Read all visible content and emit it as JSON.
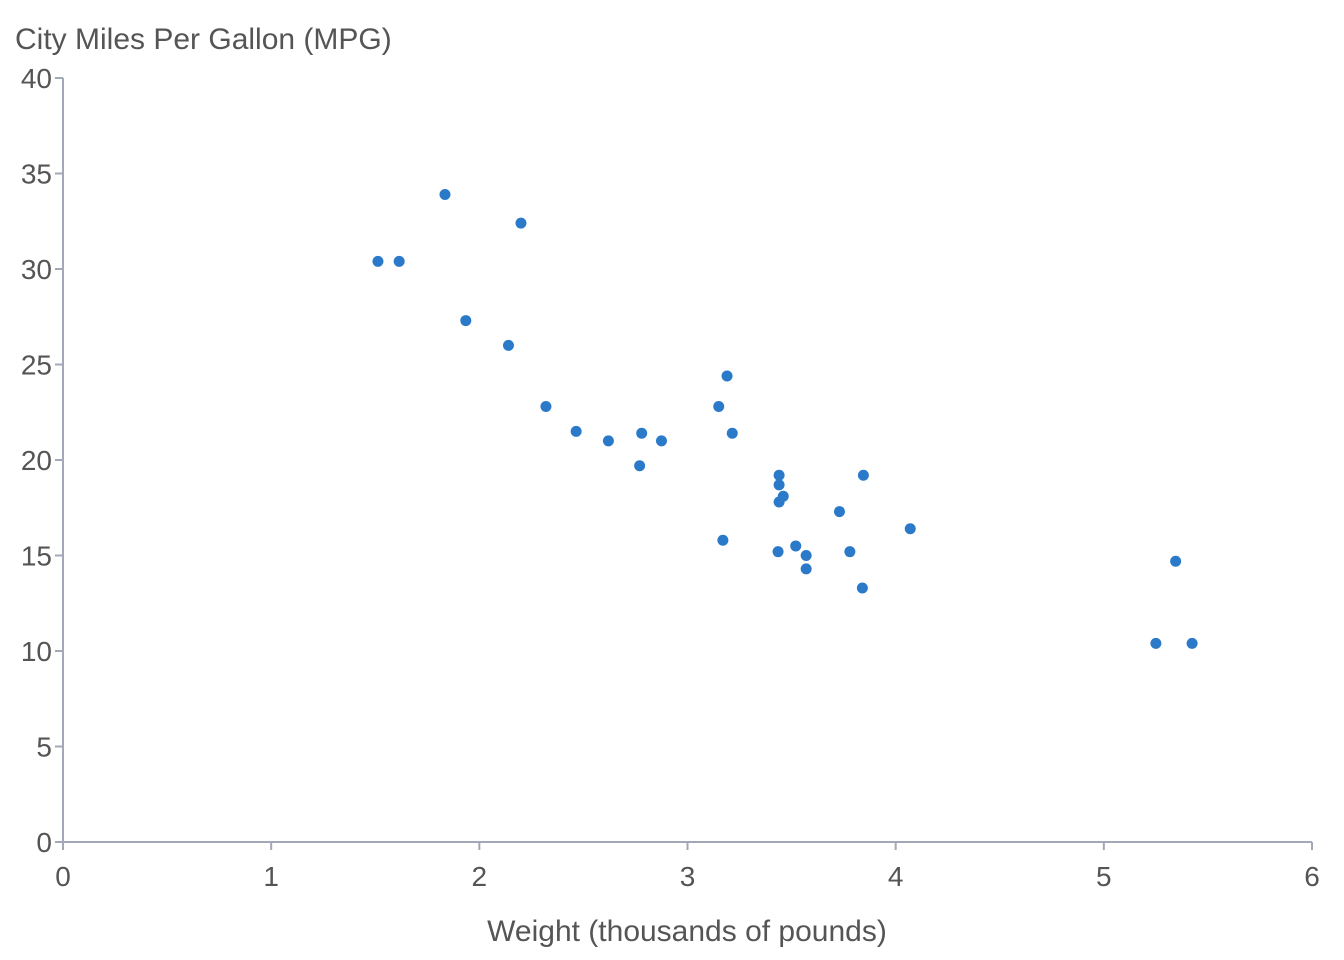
{
  "chart_data": {
    "type": "scatter",
    "ylabel": "City Miles Per Gallon (MPG)",
    "xlabel": "Weight (thousands of pounds)",
    "xlim": [
      0,
      6
    ],
    "ylim": [
      0,
      40
    ],
    "x_ticks": [
      "0",
      "1",
      "2",
      "3",
      "4",
      "5",
      "6"
    ],
    "y_ticks": [
      "0",
      "5",
      "10",
      "15",
      "20",
      "25",
      "30",
      "35",
      "40"
    ],
    "x_tick_values": [
      0,
      1,
      2,
      3,
      4,
      5,
      6
    ],
    "y_tick_values": [
      0,
      5,
      10,
      15,
      20,
      25,
      30,
      35,
      40
    ],
    "grid": false,
    "point_color": "#2a7ac9",
    "series": [
      {
        "points": [
          {
            "x": 1.513,
            "y": 30.4
          },
          {
            "x": 1.615,
            "y": 30.4
          },
          {
            "x": 1.835,
            "y": 33.9
          },
          {
            "x": 1.935,
            "y": 27.3
          },
          {
            "x": 2.14,
            "y": 26.0
          },
          {
            "x": 2.2,
            "y": 32.4
          },
          {
            "x": 2.32,
            "y": 22.8
          },
          {
            "x": 2.465,
            "y": 21.5
          },
          {
            "x": 2.62,
            "y": 21.0
          },
          {
            "x": 2.77,
            "y": 19.7
          },
          {
            "x": 2.78,
            "y": 21.4
          },
          {
            "x": 2.875,
            "y": 21.0
          },
          {
            "x": 3.15,
            "y": 22.8
          },
          {
            "x": 3.17,
            "y": 15.8
          },
          {
            "x": 3.19,
            "y": 24.4
          },
          {
            "x": 3.215,
            "y": 21.4
          },
          {
            "x": 3.435,
            "y": 15.2
          },
          {
            "x": 3.44,
            "y": 17.8
          },
          {
            "x": 3.44,
            "y": 18.7
          },
          {
            "x": 3.44,
            "y": 19.2
          },
          {
            "x": 3.46,
            "y": 18.1
          },
          {
            "x": 3.52,
            "y": 15.5
          },
          {
            "x": 3.57,
            "y": 14.3
          },
          {
            "x": 3.57,
            "y": 15.0
          },
          {
            "x": 3.73,
            "y": 17.3
          },
          {
            "x": 3.78,
            "y": 15.2
          },
          {
            "x": 3.84,
            "y": 13.3
          },
          {
            "x": 3.845,
            "y": 19.2
          },
          {
            "x": 4.07,
            "y": 16.4
          },
          {
            "x": 5.25,
            "y": 10.4
          },
          {
            "x": 5.345,
            "y": 14.7
          },
          {
            "x": 5.424,
            "y": 10.4
          }
        ]
      }
    ]
  }
}
